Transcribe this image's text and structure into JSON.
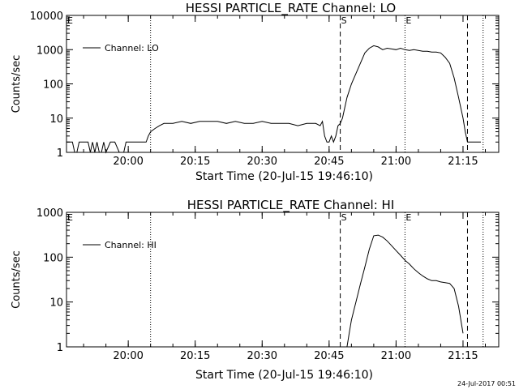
{
  "chart_data": [
    {
      "type": "line",
      "title": "HESSI PARTICLE_RATE Channel: LO",
      "xlabel": "Start Time (20-Jul-15 19:46:10)",
      "ylabel": "Counts/sec",
      "yscale": "log",
      "ylim": [
        1,
        10000
      ],
      "xlim": [
        "19:46:10",
        "21:23:00"
      ],
      "x_ticks": [
        "20:00",
        "20:15",
        "20:30",
        "20:45",
        "21:00",
        "21:15"
      ],
      "y_ticks": [
        "1",
        "10",
        "100",
        "1000",
        "10000"
      ],
      "legend": {
        "placement": "top-left",
        "entries": [
          "Channel: LO"
        ]
      },
      "markers": [
        {
          "label": "E",
          "time": "19:46:10",
          "style": "dotted"
        },
        {
          "label": "",
          "time": "20:05:00",
          "style": "dotted"
        },
        {
          "label": "S",
          "time": "20:47:30",
          "style": "dashed"
        },
        {
          "label": "E",
          "time": "21:02:00",
          "style": "dotted"
        },
        {
          "label": "",
          "time": "21:16:00",
          "style": "dashed"
        },
        {
          "label": "",
          "time": "21:19:30",
          "style": "dotted"
        }
      ],
      "series": [
        {
          "name": "Channel: LO",
          "x": [
            "19:46:10",
            "19:47:30",
            "19:48:00",
            "19:48:30",
            "19:49:00",
            "19:50:00",
            "19:51:00",
            "19:51:30",
            "19:52:00",
            "19:52:30",
            "19:53:00",
            "19:53:30",
            "19:54:00",
            "19:54:30",
            "19:55:00",
            "19:56:00",
            "19:57:00",
            "19:58:00",
            "19:59:00",
            "19:59:30",
            "20:00:00",
            "20:01:00",
            "20:02:00",
            "20:03:00",
            "20:04:00",
            "20:04:30",
            "20:05:00",
            "20:06:00",
            "20:07:00",
            "20:08:00",
            "20:10:00",
            "20:12:00",
            "20:14:00",
            "20:16:00",
            "20:18:00",
            "20:20:00",
            "20:22:00",
            "20:24:00",
            "20:26:00",
            "20:28:00",
            "20:30:00",
            "20:32:00",
            "20:34:00",
            "20:36:00",
            "20:38:00",
            "20:40:00",
            "20:42:00",
            "20:43:00",
            "20:43:30",
            "20:44:00",
            "20:44:30",
            "20:45:00",
            "20:45:30",
            "20:46:00",
            "20:46:30",
            "20:47:00",
            "20:47:30",
            "20:48:00",
            "20:48:30",
            "20:49:00",
            "20:50:00",
            "20:51:00",
            "20:52:00",
            "20:53:00",
            "20:54:00",
            "20:55:00",
            "20:56:00",
            "20:57:00",
            "20:58:00",
            "20:59:00",
            "21:00:00",
            "21:01:00",
            "21:02:00",
            "21:03:00",
            "21:04:00",
            "21:05:00",
            "21:06:00",
            "21:07:00",
            "21:08:00",
            "21:09:00",
            "21:10:00",
            "21:11:00",
            "21:12:00",
            "21:13:00",
            "21:14:00",
            "21:15:00",
            "21:15:30",
            "21:16:00",
            "21:16:30",
            "21:17:00",
            "21:18:00",
            "21:19:00"
          ],
          "y": [
            2,
            2,
            1,
            1,
            2,
            2,
            2,
            1,
            2,
            1,
            2,
            1,
            1,
            2,
            1,
            2,
            2,
            1,
            1,
            2,
            2,
            2,
            2,
            2,
            2,
            3,
            4,
            5,
            6,
            7,
            7,
            8,
            7,
            8,
            8,
            8,
            7,
            8,
            7,
            7,
            8,
            7,
            7,
            7,
            6,
            7,
            7,
            6,
            8,
            3,
            2,
            2,
            3,
            2,
            3,
            6,
            7,
            10,
            20,
            40,
            100,
            200,
            400,
            800,
            1100,
            1300,
            1200,
            1000,
            1100,
            1050,
            1000,
            1100,
            1000,
            950,
            1000,
            950,
            900,
            900,
            850,
            850,
            800,
            600,
            400,
            150,
            40,
            10,
            4,
            2,
            2,
            2,
            2,
            2
          ]
        }
      ]
    },
    {
      "type": "line",
      "title": "HESSI PARTICLE_RATE Channel: HI",
      "xlabel": "Start Time (20-Jul-15 19:46:10)",
      "ylabel": "Counts/sec",
      "yscale": "log",
      "ylim": [
        1,
        1000
      ],
      "xlim": [
        "19:46:10",
        "21:23:00"
      ],
      "x_ticks": [
        "20:00",
        "20:15",
        "20:30",
        "20:45",
        "21:00",
        "21:15"
      ],
      "y_ticks": [
        "1",
        "10",
        "100",
        "1000"
      ],
      "legend": {
        "placement": "top-left",
        "entries": [
          "Channel: HI"
        ]
      },
      "markers": [
        {
          "label": "E",
          "time": "19:46:10",
          "style": "dotted"
        },
        {
          "label": "",
          "time": "20:05:00",
          "style": "dotted"
        },
        {
          "label": "S",
          "time": "20:47:30",
          "style": "dashed"
        },
        {
          "label": "E",
          "time": "21:02:00",
          "style": "dotted"
        },
        {
          "label": "",
          "time": "21:16:00",
          "style": "dashed"
        },
        {
          "label": "",
          "time": "21:19:30",
          "style": "dotted"
        }
      ],
      "series": [
        {
          "name": "Channel: HI",
          "x": [
            "20:49:00",
            "20:49:30",
            "20:50:00",
            "20:51:00",
            "20:52:00",
            "20:53:00",
            "20:54:00",
            "20:55:00",
            "20:56:00",
            "20:57:00",
            "20:58:00",
            "20:59:00",
            "21:00:00",
            "21:01:00",
            "21:02:00",
            "21:03:00",
            "21:04:00",
            "21:05:00",
            "21:06:00",
            "21:07:00",
            "21:08:00",
            "21:09:00",
            "21:10:00",
            "21:11:00",
            "21:12:00",
            "21:13:00",
            "21:14:00",
            "21:15:00"
          ],
          "y": [
            1,
            2,
            4,
            10,
            25,
            60,
            150,
            300,
            310,
            280,
            230,
            180,
            140,
            110,
            85,
            70,
            55,
            45,
            38,
            33,
            30,
            30,
            28,
            27,
            26,
            20,
            8,
            2
          ]
        }
      ]
    }
  ],
  "footer": {
    "timestamp": "24-Jul-2017 00:51"
  }
}
